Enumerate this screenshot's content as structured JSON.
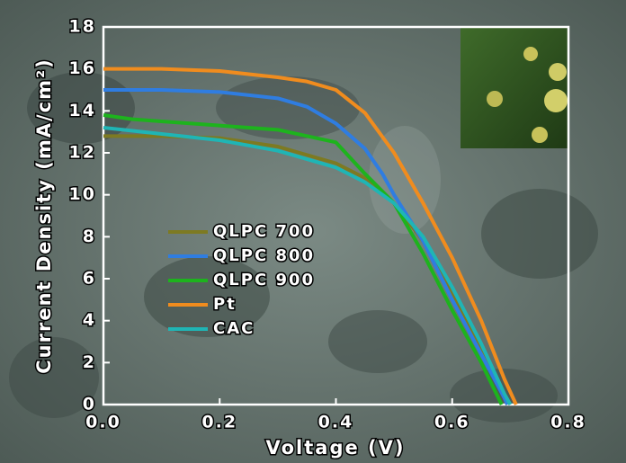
{
  "chart_data": {
    "type": "line",
    "x_label": "Voltage (V)",
    "y_label": "Current Density (mA/cm²)",
    "xlim": [
      0,
      0.8
    ],
    "ylim": [
      0,
      18
    ],
    "xticks": [
      {
        "value": 0,
        "label": "0.0"
      },
      0.2,
      0.4,
      0.6,
      0.8
    ],
    "yticks": [
      0,
      2,
      4,
      6,
      8,
      10,
      12,
      14,
      16,
      18
    ],
    "legend": "lower-left",
    "series": [
      {
        "name": "QLPC 700",
        "color": "#7d7a22",
        "x": [
          0,
          0.1,
          0.2,
          0.3,
          0.4,
          0.45,
          0.5,
          0.55,
          0.6,
          0.65,
          0.69,
          0.695
        ],
        "values": [
          12.8,
          12.8,
          12.7,
          12.3,
          11.5,
          10.8,
          9.6,
          7.8,
          5.2,
          2.6,
          0.3,
          0
        ]
      },
      {
        "name": "QLPC 800",
        "color": "#2f7de1",
        "x": [
          0,
          0.1,
          0.2,
          0.3,
          0.35,
          0.4,
          0.45,
          0.48,
          0.5,
          0.55,
          0.6,
          0.65,
          0.69,
          0.695
        ],
        "values": [
          15.0,
          15.0,
          14.9,
          14.6,
          14.2,
          13.4,
          12.2,
          11.0,
          10.0,
          7.8,
          5.0,
          2.4,
          0.3,
          0
        ]
      },
      {
        "name": "QLPC 900",
        "color": "#1db31d",
        "x": [
          0,
          0.05,
          0.1,
          0.2,
          0.3,
          0.4,
          0.45,
          0.5,
          0.55,
          0.6,
          0.65,
          0.685
        ],
        "values": [
          13.8,
          13.6,
          13.5,
          13.3,
          13.1,
          12.5,
          11.0,
          9.6,
          7.2,
          4.5,
          2.0,
          0
        ]
      },
      {
        "name": "Pt",
        "color": "#f08c1e",
        "x": [
          0,
          0.1,
          0.2,
          0.3,
          0.35,
          0.4,
          0.45,
          0.5,
          0.55,
          0.6,
          0.65,
          0.69,
          0.71
        ],
        "values": [
          16.0,
          16.0,
          15.9,
          15.6,
          15.4,
          15.0,
          13.9,
          12.0,
          9.6,
          7.0,
          4.0,
          1.2,
          0
        ]
      },
      {
        "name": "CAC",
        "color": "#1fb5b5",
        "x": [
          0,
          0.1,
          0.2,
          0.3,
          0.4,
          0.45,
          0.5,
          0.55,
          0.6,
          0.65,
          0.69,
          0.7
        ],
        "values": [
          13.2,
          12.9,
          12.6,
          12.1,
          11.3,
          10.6,
          9.6,
          8.0,
          5.6,
          2.9,
          0.5,
          0
        ]
      }
    ]
  }
}
